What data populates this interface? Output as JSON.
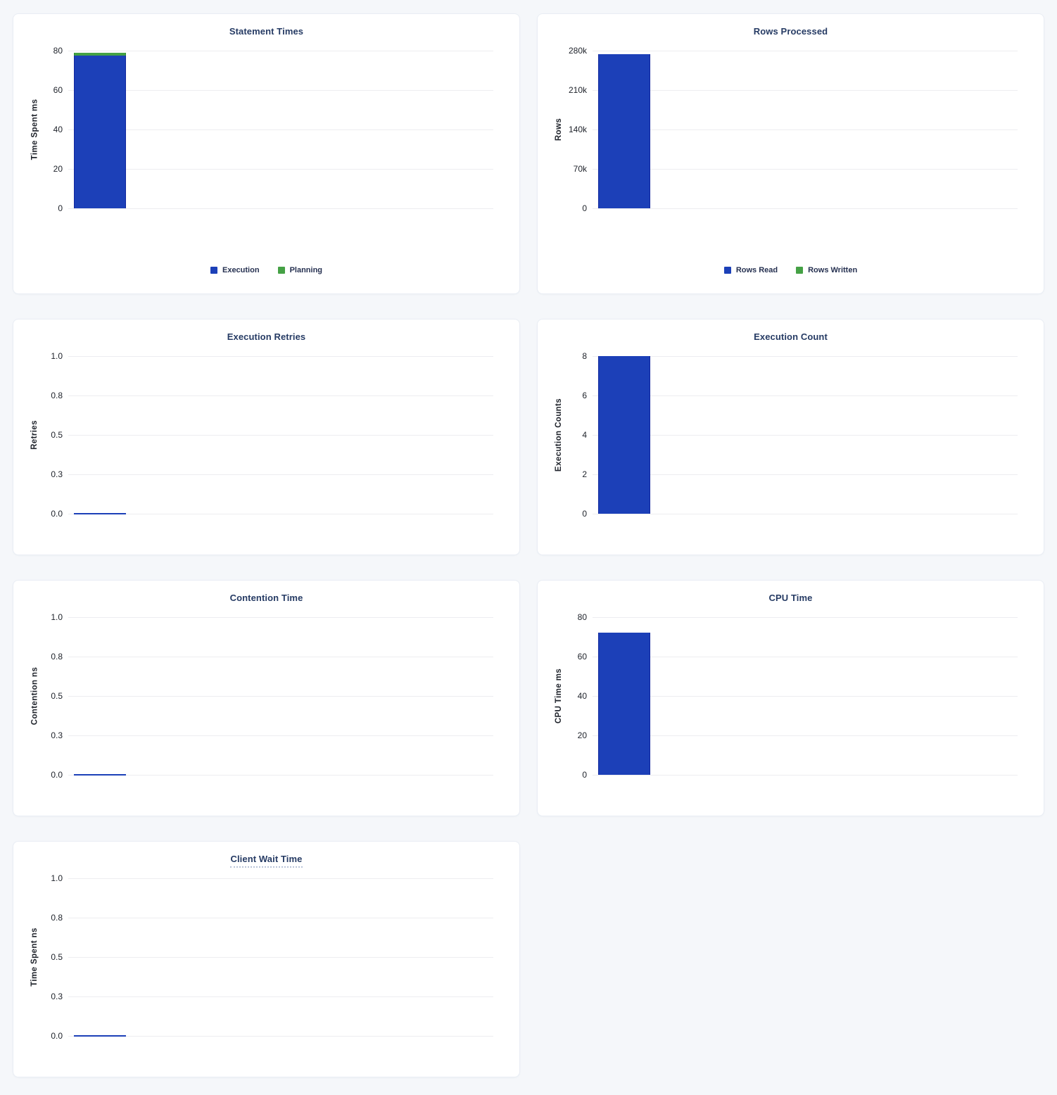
{
  "colors": {
    "bar_blue": "#1c40b8",
    "bar_blue_border": "#12279f",
    "bar_green": "#45a145",
    "bar_green_border": "#2f8f35",
    "title_navy": "#263b64",
    "axis_text": "#20242c",
    "legend_text": "#253050",
    "gridline": "#ededf0",
    "card_background": "#ffffff",
    "card_border": "#e9edf4",
    "page_background": "#f5f7fa"
  },
  "chart_data": [
    {
      "key": "statement-times",
      "type": "bar",
      "title": "Statement Times",
      "ylabel": "Time Spent ms",
      "ymax": 80,
      "ylim": [
        0,
        80
      ],
      "yticks": [
        "80",
        "60",
        "40",
        "20",
        "0"
      ],
      "grid": "on",
      "legend_position": "bottom",
      "series": [
        {
          "name": "Execution",
          "color": "bar_blue",
          "border": "bar_blue_border",
          "value": 77.5
        },
        {
          "name": "Planning",
          "color": "bar_green",
          "border": "bar_green_border",
          "value": 1.4
        }
      ],
      "stacked": true,
      "legend": [
        {
          "label": "Execution",
          "color": "bar_blue"
        },
        {
          "label": "Planning",
          "color": "bar_green"
        }
      ]
    },
    {
      "key": "rows-processed",
      "type": "bar",
      "title": "Rows Processed",
      "ylabel": "Rows",
      "ymax": 280000,
      "ylim": [
        0,
        280000
      ],
      "yticks": [
        "280k",
        "210k",
        "140k",
        "70k",
        "0"
      ],
      "grid": "on",
      "legend_position": "bottom",
      "series": [
        {
          "name": "Rows Read",
          "color": "bar_blue",
          "border": "bar_blue_border",
          "value": 274000
        },
        {
          "name": "Rows Written",
          "color": "bar_green",
          "border": "bar_green_border",
          "value": 0
        }
      ],
      "stacked": true,
      "legend": [
        {
          "label": "Rows Read",
          "color": "bar_blue"
        },
        {
          "label": "Rows Written",
          "color": "bar_green"
        }
      ]
    },
    {
      "key": "execution-retries",
      "type": "bar",
      "title": "Execution Retries",
      "ylabel": "Retries",
      "ymax": 1,
      "ylim": [
        0,
        1
      ],
      "yticks": [
        "1.0",
        "0.8",
        "0.5",
        "0.3",
        "0.0"
      ],
      "grid": "on",
      "series": [
        {
          "name": "Retries",
          "color": "bar_blue",
          "border": "bar_blue_border",
          "value": 0
        }
      ]
    },
    {
      "key": "execution-count",
      "type": "bar",
      "title": "Execution Count",
      "ylabel": "Execution Counts",
      "ymax": 8,
      "ylim": [
        0,
        8
      ],
      "yticks": [
        "8",
        "6",
        "4",
        "2",
        "0"
      ],
      "grid": "on",
      "series": [
        {
          "name": "Execution Count",
          "color": "bar_blue",
          "border": "bar_blue_border",
          "value": 8
        }
      ]
    },
    {
      "key": "contention-time",
      "type": "bar",
      "title": "Contention Time",
      "ylabel": "Contention ns",
      "ymax": 1,
      "ylim": [
        0,
        1
      ],
      "yticks": [
        "1.0",
        "0.8",
        "0.5",
        "0.3",
        "0.0"
      ],
      "grid": "on",
      "series": [
        {
          "name": "Contention",
          "color": "bar_blue",
          "border": "bar_blue_border",
          "value": 0
        }
      ]
    },
    {
      "key": "cpu-time",
      "type": "bar",
      "title": "CPU Time",
      "ylabel": "CPU Time ms",
      "ymax": 80,
      "ylim": [
        0,
        80
      ],
      "yticks": [
        "80",
        "60",
        "40",
        "20",
        "0"
      ],
      "grid": "on",
      "series": [
        {
          "name": "CPU Time",
          "color": "bar_blue",
          "border": "bar_blue_border",
          "value": 72
        }
      ]
    },
    {
      "key": "client-wait-time",
      "type": "bar",
      "title": "Client Wait Time",
      "title_has_tooltip_underline": true,
      "ylabel": "Time Spent ns",
      "ymax": 1,
      "ylim": [
        0,
        1
      ],
      "yticks": [
        "1.0",
        "0.8",
        "0.5",
        "0.3",
        "0.0"
      ],
      "grid": "on",
      "series": [
        {
          "name": "Client Wait",
          "color": "bar_blue",
          "border": "bar_blue_border",
          "value": 0
        }
      ]
    }
  ]
}
